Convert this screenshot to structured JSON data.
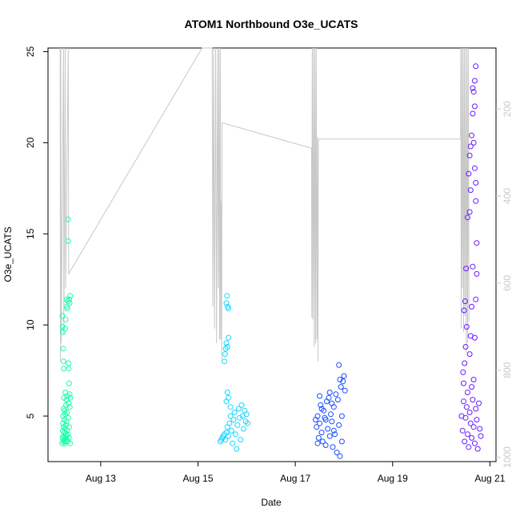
{
  "chart_data": {
    "type": "scatter",
    "title": "ATOM1 Northbound O3e_UCATS",
    "xlabel": "Date",
    "ylabel": "O3e_UCATS",
    "xlim": [
      "2016-08-11T22:00",
      "2016-08-21T03:00"
    ],
    "ylim": [
      2.5,
      25.2
    ],
    "yticks": [
      5,
      10,
      15,
      20,
      25
    ],
    "xticks": [
      {
        "label": "Aug 13",
        "value": "2016-08-13T00:00"
      },
      {
        "label": "Aug 15",
        "value": "2016-08-15T00:00"
      },
      {
        "label": "Aug 17",
        "value": "2016-08-17T00:00"
      },
      {
        "label": "Aug 19",
        "value": "2016-08-19T00:00"
      },
      {
        "label": "Aug 21",
        "value": "2016-08-21T00:00"
      }
    ],
    "right_axis": {
      "label": "",
      "range_top": 60,
      "range_bottom": 1010,
      "ticks": [
        200,
        400,
        600,
        800,
        1000
      ],
      "color": "#c9c9c9"
    },
    "series": [
      {
        "color": "#1affa8",
        "points": [
          [
            "2016-08-12T05:00",
            3.5
          ],
          [
            "2016-08-12T05:10",
            3.8
          ],
          [
            "2016-08-12T05:15",
            4.2
          ],
          [
            "2016-08-12T05:20",
            4.6
          ],
          [
            "2016-08-12T05:25",
            5.0
          ],
          [
            "2016-08-12T05:30",
            3.6
          ],
          [
            "2016-08-12T05:35",
            3.9
          ],
          [
            "2016-08-12T05:40",
            4.4
          ],
          [
            "2016-08-12T05:45",
            5.4
          ],
          [
            "2016-08-12T05:50",
            6.0
          ],
          [
            "2016-08-12T05:55",
            3.7
          ],
          [
            "2016-08-12T06:00",
            4.1
          ],
          [
            "2016-08-12T06:05",
            4.8
          ],
          [
            "2016-08-12T06:10",
            5.3
          ],
          [
            "2016-08-12T06:15",
            3.5
          ],
          [
            "2016-08-12T06:20",
            3.8
          ],
          [
            "2016-08-12T06:25",
            4.3
          ],
          [
            "2016-08-12T06:30",
            5.1
          ],
          [
            "2016-08-12T06:35",
            6.3
          ],
          [
            "2016-08-12T06:40",
            3.6
          ],
          [
            "2016-08-12T06:45",
            4.0
          ],
          [
            "2016-08-12T06:50",
            4.5
          ],
          [
            "2016-08-12T06:55",
            5.6
          ],
          [
            "2016-08-12T07:00",
            3.9
          ],
          [
            "2016-08-12T07:05",
            4.7
          ],
          [
            "2016-08-12T07:10",
            5.9
          ],
          [
            "2016-08-12T07:15",
            3.7
          ],
          [
            "2016-08-12T07:20",
            4.2
          ],
          [
            "2016-08-12T07:25",
            5.2
          ],
          [
            "2016-08-12T07:30",
            6.1
          ],
          [
            "2016-08-12T07:40",
            3.6
          ],
          [
            "2016-08-12T07:50",
            4.0
          ],
          [
            "2016-08-12T08:00",
            4.9
          ],
          [
            "2016-08-12T08:10",
            5.7
          ],
          [
            "2016-08-12T08:20",
            3.8
          ],
          [
            "2016-08-12T08:30",
            4.4
          ],
          [
            "2016-08-12T05:05",
            10.5
          ],
          [
            "2016-08-12T05:10",
            9.9
          ],
          [
            "2016-08-12T05:20",
            9.6
          ],
          [
            "2016-08-12T05:30",
            8.7
          ],
          [
            "2016-08-12T05:40",
            8.0
          ],
          [
            "2016-08-12T05:45",
            7.6
          ],
          [
            "2016-08-12T06:30",
            9.8
          ],
          [
            "2016-08-12T06:40",
            10.3
          ],
          [
            "2016-08-12T07:10",
            11.4
          ],
          [
            "2016-08-12T07:20",
            11.0
          ],
          [
            "2016-08-12T07:35",
            10.9
          ],
          [
            "2016-08-12T07:50",
            11.3
          ],
          [
            "2016-08-12T08:05",
            7.9
          ],
          [
            "2016-08-12T08:15",
            7.6
          ],
          [
            "2016-08-12T08:25",
            6.8
          ],
          [
            "2016-08-12T08:40",
            6.2
          ],
          [
            "2016-08-12T09:00",
            6.0
          ],
          [
            "2016-08-12T08:45",
            5.5
          ],
          [
            "2016-08-12T08:50",
            3.5
          ],
          [
            "2016-08-12T07:55",
            15.8
          ],
          [
            "2016-08-12T07:58",
            14.6
          ],
          [
            "2016-08-12T08:30",
            11.4
          ],
          [
            "2016-08-12T08:40",
            11.2
          ],
          [
            "2016-08-12T08:55",
            11.6
          ]
        ]
      },
      {
        "color": "#1ad6ff",
        "points": [
          [
            "2016-08-15T11:00",
            3.6
          ],
          [
            "2016-08-15T11:30",
            3.7
          ],
          [
            "2016-08-15T12:00",
            3.8
          ],
          [
            "2016-08-15T12:30",
            3.9
          ],
          [
            "2016-08-15T13:00",
            4.0
          ],
          [
            "2016-08-15T13:30",
            3.7
          ],
          [
            "2016-08-15T14:00",
            4.1
          ],
          [
            "2016-08-15T14:30",
            4.4
          ],
          [
            "2016-08-15T15:00",
            3.9
          ],
          [
            "2016-08-15T15:30",
            4.6
          ],
          [
            "2016-08-15T16:00",
            5.0
          ],
          [
            "2016-08-15T16:30",
            4.2
          ],
          [
            "2016-08-15T17:00",
            3.5
          ],
          [
            "2016-08-15T17:30",
            4.8
          ],
          [
            "2016-08-15T18:00",
            5.2
          ],
          [
            "2016-08-15T18:30",
            4.0
          ],
          [
            "2016-08-15T19:00",
            3.2
          ],
          [
            "2016-08-15T19:30",
            4.5
          ],
          [
            "2016-08-15T20:00",
            5.4
          ],
          [
            "2016-08-15T20:30",
            4.9
          ],
          [
            "2016-08-15T21:00",
            3.7
          ],
          [
            "2016-08-15T21:30",
            5.6
          ],
          [
            "2016-08-15T22:00",
            5.0
          ],
          [
            "2016-08-15T22:30",
            4.3
          ],
          [
            "2016-08-15T14:00",
            5.8
          ],
          [
            "2016-08-15T14:30",
            6.3
          ],
          [
            "2016-08-15T15:00",
            6.0
          ],
          [
            "2016-08-15T16:00",
            5.5
          ],
          [
            "2016-08-15T13:00",
            8.0
          ],
          [
            "2016-08-15T13:20",
            8.4
          ],
          [
            "2016-08-15T13:40",
            8.7
          ],
          [
            "2016-08-15T14:00",
            9.0
          ],
          [
            "2016-08-15T14:30",
            8.8
          ],
          [
            "2016-08-15T15:00",
            9.3
          ],
          [
            "2016-08-15T14:00",
            11.2
          ],
          [
            "2016-08-15T14:20",
            11.6
          ],
          [
            "2016-08-15T14:40",
            11.0
          ],
          [
            "2016-08-15T15:00",
            10.9
          ],
          [
            "2016-08-15T23:00",
            5.3
          ],
          [
            "2016-08-15T23:30",
            4.7
          ],
          [
            "2016-08-16T00:00",
            5.1
          ],
          [
            "2016-08-16T00:30",
            4.6
          ]
        ]
      },
      {
        "color": "#1a4dff",
        "points": [
          [
            "2016-08-17T10:00",
            4.8
          ],
          [
            "2016-08-17T10:30",
            4.4
          ],
          [
            "2016-08-17T11:00",
            5.0
          ],
          [
            "2016-08-17T11:30",
            3.8
          ],
          [
            "2016-08-17T12:00",
            4.6
          ],
          [
            "2016-08-17T12:30",
            5.6
          ],
          [
            "2016-08-17T13:00",
            4.1
          ],
          [
            "2016-08-17T13:30",
            3.6
          ],
          [
            "2016-08-17T14:00",
            5.3
          ],
          [
            "2016-08-17T14:30",
            4.9
          ],
          [
            "2016-08-17T15:00",
            3.4
          ],
          [
            "2016-08-17T15:30",
            5.8
          ],
          [
            "2016-08-17T16:00",
            4.3
          ],
          [
            "2016-08-17T16:30",
            6.0
          ],
          [
            "2016-08-17T17:00",
            3.9
          ],
          [
            "2016-08-17T17:30",
            5.1
          ],
          [
            "2016-08-17T18:00",
            4.7
          ],
          [
            "2016-08-17T18:30",
            3.3
          ],
          [
            "2016-08-17T19:00",
            5.5
          ],
          [
            "2016-08-17T19:30",
            4.0
          ],
          [
            "2016-08-17T20:00",
            6.2
          ],
          [
            "2016-08-17T20:30",
            3.0
          ],
          [
            "2016-08-17T21:00",
            5.9
          ],
          [
            "2016-08-17T21:30",
            4.5
          ],
          [
            "2016-08-17T22:00",
            2.8
          ],
          [
            "2016-08-17T22:30",
            6.6
          ],
          [
            "2016-08-17T23:00",
            5.0
          ],
          [
            "2016-08-17T23:30",
            6.9
          ],
          [
            "2016-08-18T00:00",
            7.2
          ],
          [
            "2016-08-18T00:30",
            6.4
          ],
          [
            "2016-08-17T21:30",
            7.8
          ],
          [
            "2016-08-17T22:00",
            7.0
          ],
          [
            "2016-08-17T12:00",
            6.1
          ],
          [
            "2016-08-17T13:00",
            5.4
          ],
          [
            "2016-08-17T17:00",
            6.3
          ],
          [
            "2016-08-17T19:00",
            4.2
          ],
          [
            "2016-08-17T23:00",
            3.6
          ],
          [
            "2016-08-17T11:00",
            3.5
          ],
          [
            "2016-08-17T15:00",
            4.8
          ],
          [
            "2016-08-17T18:00",
            5.7
          ]
        ]
      },
      {
        "color": "#6a1aff",
        "points": [
          [
            "2016-08-20T10:00",
            5.0
          ],
          [
            "2016-08-20T10:30",
            4.2
          ],
          [
            "2016-08-20T11:00",
            5.8
          ],
          [
            "2016-08-20T11:30",
            3.6
          ],
          [
            "2016-08-20T12:00",
            4.9
          ],
          [
            "2016-08-20T12:30",
            5.5
          ],
          [
            "2016-08-20T13:00",
            4.0
          ],
          [
            "2016-08-20T13:30",
            3.3
          ],
          [
            "2016-08-20T14:00",
            5.2
          ],
          [
            "2016-08-20T14:30",
            4.6
          ],
          [
            "2016-08-20T15:00",
            3.8
          ],
          [
            "2016-08-20T15:30",
            5.9
          ],
          [
            "2016-08-20T16:00",
            4.4
          ],
          [
            "2016-08-20T16:30",
            3.5
          ],
          [
            "2016-08-20T17:00",
            5.4
          ],
          [
            "2016-08-20T17:30",
            4.8
          ],
          [
            "2016-08-20T18:00",
            3.2
          ],
          [
            "2016-08-20T18:30",
            5.7
          ],
          [
            "2016-08-20T19:00",
            4.3
          ],
          [
            "2016-08-20T19:30",
            3.9
          ],
          [
            "2016-08-20T11:00",
            6.8
          ],
          [
            "2016-08-20T11:30",
            7.9
          ],
          [
            "2016-08-20T12:00",
            8.8
          ],
          [
            "2016-08-20T12:30",
            9.9
          ],
          [
            "2016-08-20T11:15",
            10.8
          ],
          [
            "2016-08-20T11:45",
            11.3
          ],
          [
            "2016-08-20T12:15",
            13.1
          ],
          [
            "2016-08-20T10:45",
            7.4
          ],
          [
            "2016-08-20T13:00",
            6.3
          ],
          [
            "2016-08-20T14:00",
            8.4
          ],
          [
            "2016-08-20T14:30",
            9.4
          ],
          [
            "2016-08-20T15:00",
            11.0
          ],
          [
            "2016-08-20T15:30",
            13.2
          ],
          [
            "2016-08-20T14:00",
            16.2
          ],
          [
            "2016-08-20T14:30",
            17.4
          ],
          [
            "2016-08-20T13:30",
            18.3
          ],
          [
            "2016-08-20T14:00",
            19.3
          ],
          [
            "2016-08-20T15:00",
            20.4
          ],
          [
            "2016-08-20T15:30",
            21.6
          ],
          [
            "2016-08-20T16:00",
            22.8
          ],
          [
            "2016-08-20T16:30",
            23.4
          ],
          [
            "2016-08-20T17:00",
            24.2
          ],
          [
            "2016-08-20T16:00",
            20.0
          ],
          [
            "2016-08-20T16:30",
            18.6
          ],
          [
            "2016-08-20T17:00",
            17.8
          ],
          [
            "2016-08-20T17:30",
            14.5
          ],
          [
            "2016-08-20T17:30",
            12.8
          ],
          [
            "2016-08-20T17:00",
            11.4
          ],
          [
            "2016-08-20T16:30",
            9.3
          ],
          [
            "2016-08-20T16:00",
            7.0
          ],
          [
            "2016-08-20T15:00",
            6.6
          ],
          [
            "2016-08-20T16:30",
            22.0
          ],
          [
            "2016-08-20T15:30",
            23.0
          ],
          [
            "2016-08-20T17:00",
            16.8
          ],
          [
            "2016-08-20T14:30",
            19.8
          ],
          [
            "2016-08-20T13:00",
            15.9
          ]
        ]
      }
    ],
    "grey_line": {
      "color": "#c8c8c8",
      "points": [
        [
          "2016-08-12T04:00",
          25.2
        ],
        [
          "2016-08-12T04:10",
          8.0
        ],
        [
          "2016-08-12T04:20",
          25.2
        ],
        [
          "2016-08-12T04:30",
          9.0
        ],
        [
          "2016-08-12T05:40",
          25.2
        ],
        [
          "2016-08-12T05:50",
          9.5
        ],
        [
          "2016-08-12T06:30",
          25.2
        ],
        [
          "2016-08-12T06:40",
          12.0
        ],
        [
          "2016-08-12T08:00",
          25.2
        ],
        [
          "2016-08-12T08:10",
          12.8
        ],
        [
          "2016-08-15T02:00",
          25.2
        ],
        [
          "2016-08-15T07:00",
          25.2
        ],
        [
          "2016-08-15T07:20",
          11.0
        ],
        [
          "2016-08-15T07:40",
          25.2
        ],
        [
          "2016-08-15T08:10",
          9.8
        ],
        [
          "2016-08-15T08:40",
          25.2
        ],
        [
          "2016-08-15T09:10",
          9.0
        ],
        [
          "2016-08-15T09:40",
          25.2
        ],
        [
          "2016-08-15T10:00",
          12.0
        ],
        [
          "2016-08-15T10:20",
          25.2
        ],
        [
          "2016-08-15T10:40",
          9.2
        ],
        [
          "2016-08-15T11:00",
          25.2
        ],
        [
          "2016-08-15T11:10",
          9.2
        ],
        [
          "2016-08-15T11:30",
          16.8
        ],
        [
          "2016-08-15T11:40",
          8.1
        ],
        [
          "2016-08-15T11:50",
          21.1
        ],
        [
          "2016-08-17T08:00",
          19.7
        ],
        [
          "2016-08-17T08:10",
          10.4
        ],
        [
          "2016-08-17T08:20",
          25.2
        ],
        [
          "2016-08-17T08:40",
          10.3
        ],
        [
          "2016-08-17T09:00",
          25.2
        ],
        [
          "2016-08-17T09:20",
          8.8
        ],
        [
          "2016-08-17T09:40",
          25.2
        ],
        [
          "2016-08-17T10:00",
          9.0
        ],
        [
          "2016-08-17T10:20",
          25.2
        ],
        [
          "2016-08-17T10:40",
          9.2
        ],
        [
          "2016-08-17T11:00",
          20.3
        ],
        [
          "2016-08-17T11:10",
          8.0
        ],
        [
          "2016-08-17T11:20",
          20.2
        ],
        [
          "2016-08-20T09:30",
          20.2
        ],
        [
          "2016-08-20T09:40",
          25.2
        ],
        [
          "2016-08-20T09:50",
          9.8
        ],
        [
          "2016-08-20T10:00",
          25.2
        ],
        [
          "2016-08-20T10:20",
          12.0
        ],
        [
          "2016-08-20T10:40",
          25.2
        ],
        [
          "2016-08-20T11:00",
          9.6
        ],
        [
          "2016-08-20T11:20",
          25.2
        ],
        [
          "2016-08-20T11:40",
          10.5
        ],
        [
          "2016-08-20T12:00",
          25.2
        ],
        [
          "2016-08-20T12:20",
          8.5
        ],
        [
          "2016-08-20T12:40",
          25.2
        ],
        [
          "2016-08-20T13:00",
          9.0
        ],
        [
          "2016-08-20T13:20",
          25.2
        ],
        [
          "2016-08-20T13:40",
          10.2
        ]
      ]
    },
    "grid": false,
    "legend": "none"
  }
}
